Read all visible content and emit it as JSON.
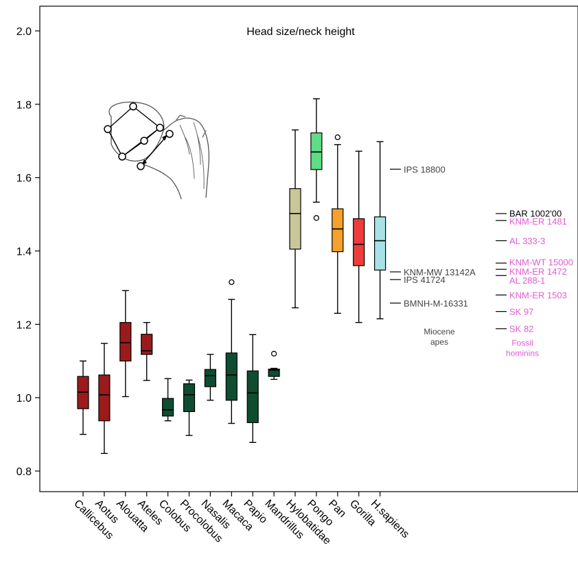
{
  "chart_data": {
    "type": "box",
    "title": "Head size/neck height",
    "xlabel": "",
    "ylabel": "",
    "ylim": [
      0.74,
      2.08
    ],
    "yticks": [
      0.8,
      1.0,
      1.2,
      1.4,
      1.6,
      1.8,
      2.0
    ],
    "ytick_labels": [
      "0.8",
      "1.0",
      "1.2",
      "1.4",
      "1.6",
      "1.8",
      "2.0"
    ],
    "grid": false,
    "colors": {
      "cebid": "#9B1B1B",
      "colobine_cercopithecine": "#0E4D31",
      "hylobatidae": "#C9C79A",
      "pongo": "#5FDC86",
      "pan": "#F6A12B",
      "gorilla": "#EE3B3B",
      "sapiens": "#A8E2E6",
      "miocene_text": "#444444",
      "fossil_text": "#E05CD0"
    },
    "boxes": [
      {
        "name": "Callicebus",
        "color": "#9B1B1B",
        "whislo": 0.9,
        "q1": 0.97,
        "med": 1.015,
        "q3": 1.058,
        "whishi": 1.1,
        "fliers": []
      },
      {
        "name": "Aotus",
        "color": "#9B1B1B",
        "whislo": 0.848,
        "q1": 0.937,
        "med": 1.008,
        "q3": 1.062,
        "whishi": 1.148,
        "fliers": []
      },
      {
        "name": "Alouatta",
        "color": "#9B1B1B",
        "whislo": 1.003,
        "q1": 1.1,
        "med": 1.15,
        "q3": 1.205,
        "whishi": 1.292,
        "fliers": []
      },
      {
        "name": "Ateles",
        "color": "#9B1B1B",
        "whislo": 1.047,
        "q1": 1.118,
        "med": 1.128,
        "q3": 1.173,
        "whishi": 1.205,
        "fliers": []
      },
      {
        "name": "Colobus",
        "color": "#0E4D31",
        "whislo": 0.937,
        "q1": 0.95,
        "med": 0.967,
        "q3": 0.998,
        "whishi": 1.052,
        "fliers": []
      },
      {
        "name": "Procolobus",
        "color": "#0E4D31",
        "whislo": 0.897,
        "q1": 0.962,
        "med": 1.008,
        "q3": 1.038,
        "whishi": 1.048,
        "fliers": []
      },
      {
        "name": "Nasalis",
        "color": "#0E4D31",
        "whislo": 0.993,
        "q1": 1.03,
        "med": 1.06,
        "q3": 1.077,
        "whishi": 1.118,
        "fliers": []
      },
      {
        "name": "Macaca",
        "color": "#0E4D31",
        "whislo": 0.93,
        "q1": 0.993,
        "med": 1.062,
        "q3": 1.122,
        "whishi": 1.268,
        "fliers": [
          1.315
        ]
      },
      {
        "name": "Papio",
        "color": "#0E4D31",
        "whislo": 0.878,
        "q1": 0.932,
        "med": 1.013,
        "q3": 1.073,
        "whishi": 1.172,
        "fliers": []
      },
      {
        "name": "Mandrillus",
        "color": "#0E4D31",
        "whislo": 1.05,
        "q1": 1.058,
        "med": 1.075,
        "q3": 1.078,
        "whishi": 1.08,
        "fliers": [
          1.12
        ]
      },
      {
        "name": "Hylobatidae",
        "color": "#C9C79A",
        "whislo": 1.245,
        "q1": 1.405,
        "med": 1.502,
        "q3": 1.57,
        "whishi": 1.73,
        "fliers": []
      },
      {
        "name": "Pongo",
        "color": "#5FDC86",
        "whislo": 1.533,
        "q1": 1.622,
        "med": 1.67,
        "q3": 1.722,
        "whishi": 1.815,
        "fliers": [
          1.49
        ]
      },
      {
        "name": "Pan",
        "color": "#F6A12B",
        "whislo": 1.23,
        "q1": 1.398,
        "med": 1.46,
        "q3": 1.515,
        "whishi": 1.69,
        "fliers": [
          1.71
        ]
      },
      {
        "name": "Gorilla",
        "color": "#EE3B3B",
        "whislo": 1.205,
        "q1": 1.36,
        "med": 1.418,
        "q3": 1.488,
        "whishi": 1.672,
        "fliers": []
      },
      {
        "name": "H.sapiens",
        "color": "#A8E2E6",
        "whislo": 1.215,
        "q1": 1.348,
        "med": 1.428,
        "q3": 1.493,
        "whishi": 1.698,
        "fliers": []
      }
    ],
    "miocene": {
      "group_label_1": "Miocene",
      "group_label_2": "apes",
      "label_y": 1.18,
      "points": [
        {
          "name": "IPS 18800",
          "value": 1.623
        },
        {
          "name": "KNM-MW 13142A",
          "value": 1.343
        },
        {
          "name": "IPS 41724",
          "value": 1.322
        },
        {
          "name": "BMNH-M-16331",
          "value": 1.258
        }
      ]
    },
    "fossil": {
      "group_label_1": "Fossil",
      "group_label_2": "hominins",
      "label_y": 1.14,
      "points": [
        {
          "name": "BAR 1002'00",
          "value": 1.502,
          "label_y": 1.503,
          "color": "#000000"
        },
        {
          "name": "KNM-ER 1481",
          "value": 1.483,
          "label_y": 1.481,
          "color": "#E05CD0"
        },
        {
          "name": "AL 333-3",
          "value": 1.428,
          "label_y": 1.428,
          "color": "#E05CD0"
        },
        {
          "name": "KNM-WT 15000",
          "value": 1.367,
          "label_y": 1.37,
          "color": "#E05CD0"
        },
        {
          "name": "KNM-ER 1472",
          "value": 1.35,
          "label_y": 1.345,
          "color": "#E05CD0"
        },
        {
          "name": "AL 288-1",
          "value": 1.333,
          "label_y": 1.32,
          "color": "#E05CD0"
        },
        {
          "name": "KNM-ER 1503",
          "value": 1.28,
          "label_y": 1.28,
          "color": "#E05CD0"
        },
        {
          "name": "SK 97",
          "value": 1.235,
          "label_y": 1.235,
          "color": "#E05CD0"
        },
        {
          "name": "SK 82",
          "value": 1.188,
          "label_y": 1.188,
          "color": "#E05CD0"
        }
      ]
    }
  },
  "femur_diagram": {
    "icon": "femur-head-diagram-icon"
  }
}
